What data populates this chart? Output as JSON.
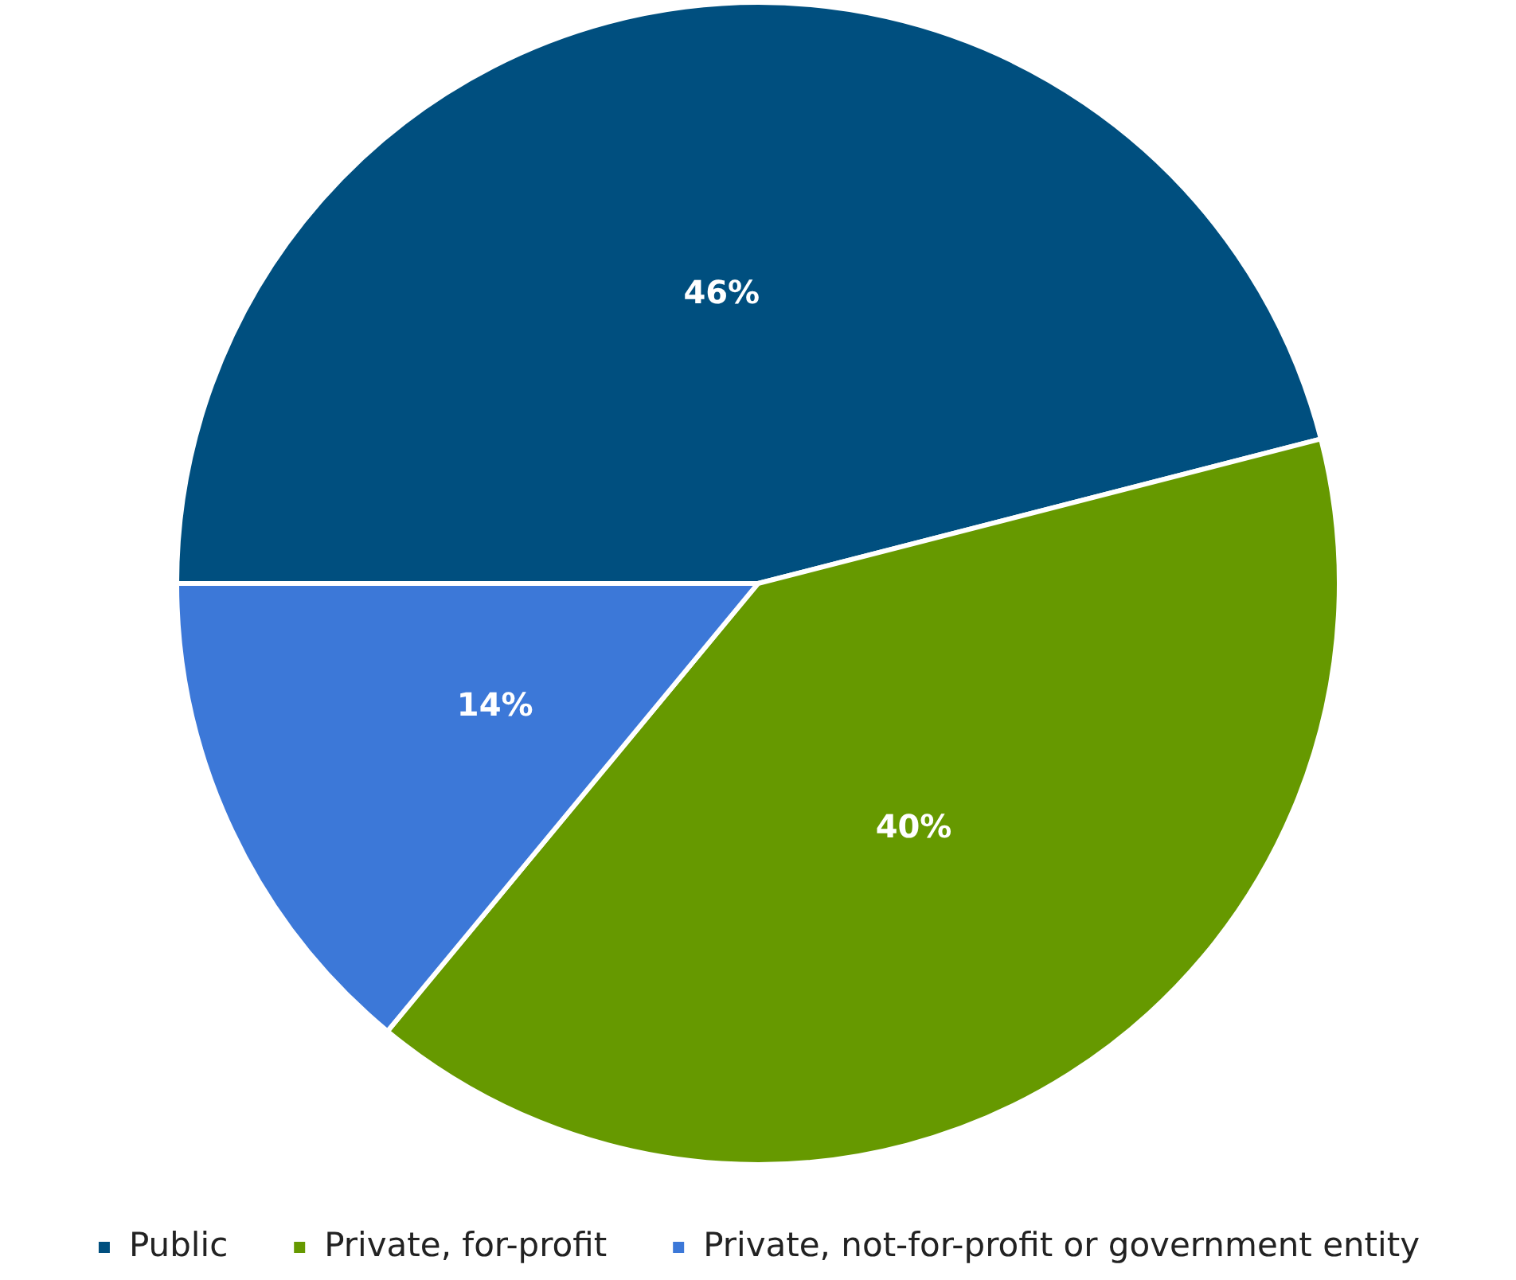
{
  "chart_data": {
    "type": "pie",
    "categories": [
      "Public",
      "Private, for-profit",
      "Private, not-for-profit or government entity"
    ],
    "values": [
      46,
      40,
      14
    ],
    "colors": [
      "#004f7f",
      "#669900",
      "#3c78d8"
    ],
    "value_labels": [
      "46%",
      "40%",
      "14%"
    ],
    "legend": "bottom"
  }
}
